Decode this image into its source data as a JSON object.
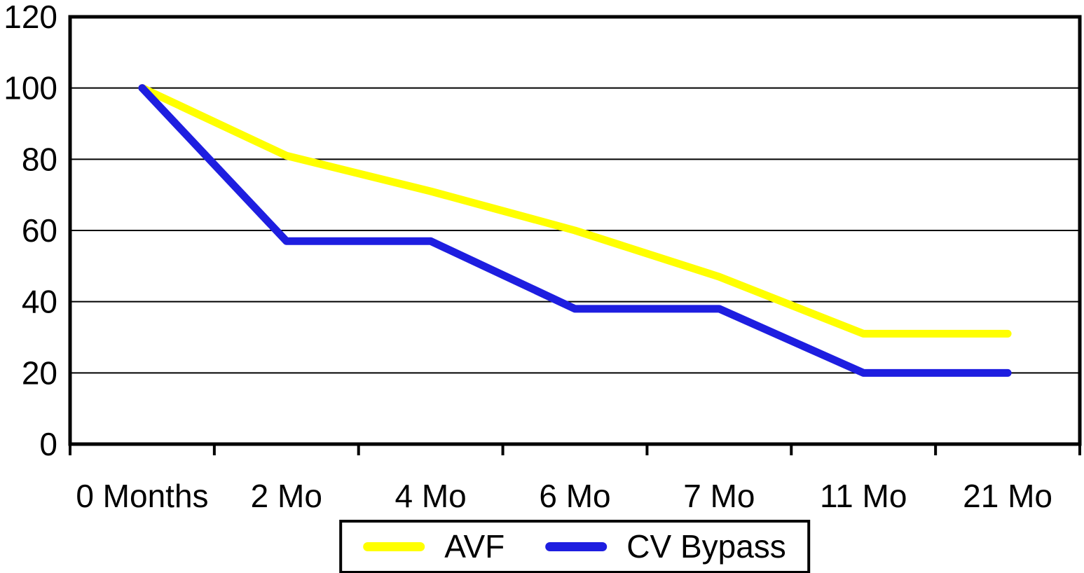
{
  "chart_data": {
    "type": "line",
    "title": "",
    "categories": [
      "0 Months",
      "2 Mo",
      "4 Mo",
      "6 Mo",
      "7 Mo",
      "11 Mo",
      "21 Mo"
    ],
    "series": [
      {
        "name": "AVF",
        "color": "#ffff00",
        "values": [
          100,
          81,
          71,
          60,
          47,
          31,
          31
        ]
      },
      {
        "name": "CV Bypass",
        "color": "#1e1ee0",
        "values": [
          100,
          57,
          57,
          38,
          38,
          20,
          20
        ]
      }
    ],
    "xlabel": "",
    "ylabel": "",
    "ylim": [
      0,
      120
    ],
    "yticks": [
      0,
      20,
      40,
      60,
      80,
      100,
      120
    ],
    "grid": "horizontal",
    "gridline_color": "#000000",
    "plot_border_color": "#000000",
    "legend_position": "bottom-center",
    "legend_border_color": "#000000"
  }
}
